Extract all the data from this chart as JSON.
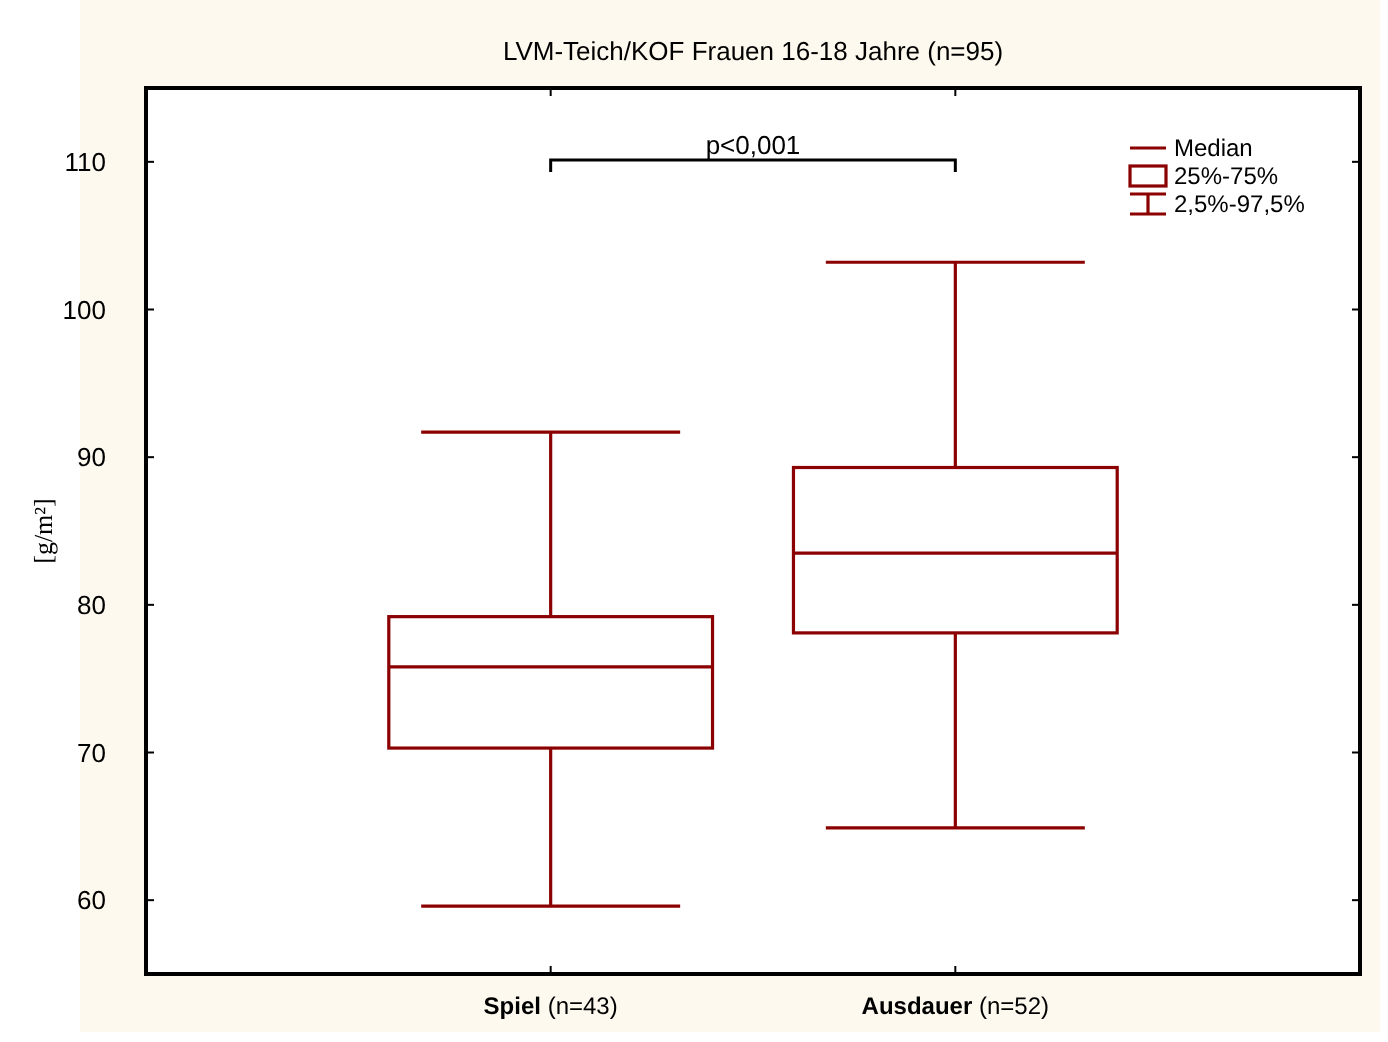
{
  "chart_data": {
    "type": "box",
    "title": "LVM-Teich/KOF Frauen 16-18 Jahre (n=95)",
    "ylabel": "[g/m²]",
    "categories": [
      "Spiel (n=43)",
      "Ausdauer (n=52)"
    ],
    "series": [
      {
        "color": "#8b0000",
        "boxes": [
          {
            "low": 59.6,
            "q1": 70.3,
            "median": 75.8,
            "q3": 79.2,
            "high": 91.7
          },
          {
            "low": 64.9,
            "q1": 78.1,
            "median": 83.5,
            "q3": 89.3,
            "high": 103.2
          }
        ]
      }
    ],
    "ylim": [
      55,
      115
    ],
    "yticks": [
      60,
      70,
      80,
      90,
      100,
      110
    ],
    "grid": false,
    "annotations": [
      "p<0,001",
      "Median",
      "25%-75%",
      "2,5%-97,5%"
    ]
  }
}
